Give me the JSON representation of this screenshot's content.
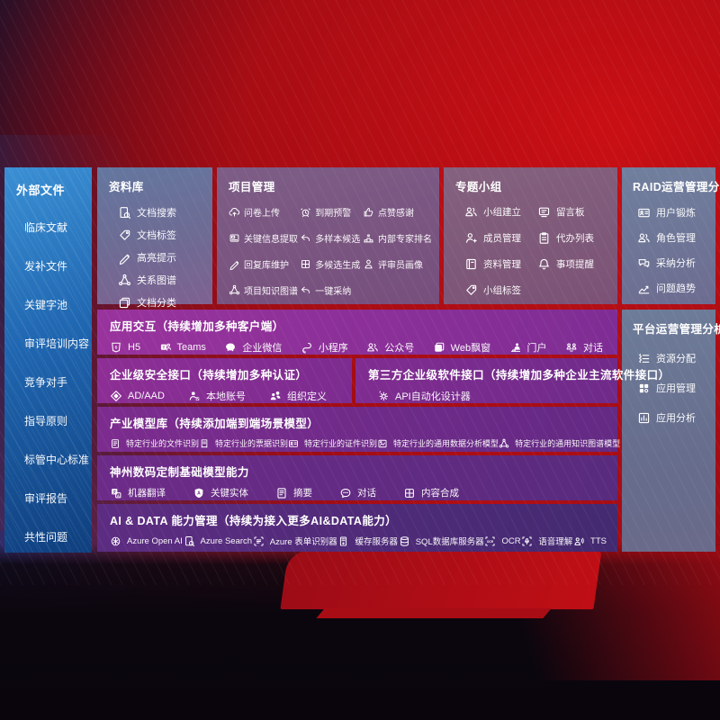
{
  "colors": {
    "background_red": "#bb0e14",
    "background_dark": "#0b060e",
    "sidebar_blue_top": "#3a8fd4",
    "sidebar_blue_bottom": "#0f3f7e",
    "panel_slate_blue": "#64779f",
    "panel_mauve": "#7d5d86",
    "row_purple_bright": "#99339d",
    "row_purple_deep": "#432a70",
    "text": "#ffffff"
  },
  "sidebar": {
    "title": "外部文件",
    "items": [
      {
        "label": "临床文献"
      },
      {
        "label": "发补文件"
      },
      {
        "label": "关键字池"
      },
      {
        "label": "审评培训内容"
      },
      {
        "label": "竞争对手"
      },
      {
        "label": "指导原则"
      },
      {
        "label": "标管中心标准"
      },
      {
        "label": "审评报告"
      },
      {
        "label": "共性问题"
      }
    ]
  },
  "panels": {
    "library": {
      "title": "资料库",
      "items": [
        {
          "icon": "doc-search-icon",
          "label": "文档搜索"
        },
        {
          "icon": "doc-tag-icon",
          "label": "文档标签"
        },
        {
          "icon": "highlight-pen-icon",
          "label": "高亮提示"
        },
        {
          "icon": "relation-graph-icon",
          "label": "关系图谱"
        },
        {
          "icon": "doc-classify-icon",
          "label": "文档分类"
        }
      ]
    },
    "project": {
      "title": "项目管理",
      "items": [
        {
          "icon": "cloud-upload-icon",
          "label": "问卷上传"
        },
        {
          "icon": "alarm-icon",
          "label": "到期预警"
        },
        {
          "icon": "thumbs-up-icon",
          "label": "点赞感谢"
        },
        {
          "icon": "key-info-icon",
          "label": "关键信息提取"
        },
        {
          "icon": "multi-sample-icon",
          "label": "多样本候选"
        },
        {
          "icon": "expert-rank-icon",
          "label": "内部专家排名"
        },
        {
          "icon": "reply-maintain-icon",
          "label": "回复库维护"
        },
        {
          "icon": "multi-candidate-icon",
          "label": "多候选生成"
        },
        {
          "icon": "reviewer-portrait-icon",
          "label": "评审员画像"
        },
        {
          "icon": "project-kg-icon",
          "label": "项目知识图谱"
        },
        {
          "icon": "one-click-adopt-icon",
          "label": "一键采纳"
        }
      ]
    },
    "groups": {
      "title": "专题小组",
      "items": [
        {
          "icon": "group-create-icon",
          "label": "小组建立"
        },
        {
          "icon": "message-board-icon",
          "label": "留言板"
        },
        {
          "icon": "member-manage-icon",
          "label": "成员管理"
        },
        {
          "icon": "todo-list-icon",
          "label": "代办列表"
        },
        {
          "icon": "material-manage-icon",
          "label": "资料管理"
        },
        {
          "icon": "matter-remind-icon",
          "label": "事项提醒"
        },
        {
          "icon": "group-tag-icon",
          "label": "小组标签"
        }
      ]
    },
    "raid": {
      "title": "RAID运营管理分析",
      "items": [
        {
          "icon": "user-card-icon",
          "label": "用户锻炼"
        },
        {
          "icon": "role-manage-icon",
          "label": "角色管理"
        },
        {
          "icon": "adoption-analysis-icon",
          "label": "采纳分析"
        },
        {
          "icon": "issue-trend-icon",
          "label": "问题趋势"
        }
      ]
    },
    "platform": {
      "title": "平台运营管理分析",
      "items": [
        {
          "icon": "resource-alloc-icon",
          "label": "资源分配"
        },
        {
          "icon": "app-manage-icon",
          "label": "应用管理"
        },
        {
          "icon": "app-analysis-icon",
          "label": "应用分析"
        }
      ]
    }
  },
  "rows": {
    "interaction": {
      "title": "应用交互（持续增加多种客户端）",
      "items": [
        {
          "icon": "h5-icon",
          "label": "H5"
        },
        {
          "icon": "teams-icon",
          "label": "Teams"
        },
        {
          "icon": "wechat-work-icon",
          "label": "企业微信"
        },
        {
          "icon": "miniprogram-icon",
          "label": "小程序"
        },
        {
          "icon": "official-account-icon",
          "label": "公众号"
        },
        {
          "icon": "web-window-icon",
          "label": "Web飘窗"
        },
        {
          "icon": "portal-icon",
          "label": "门户"
        },
        {
          "icon": "dialog-icon",
          "label": "对话"
        }
      ]
    },
    "security": {
      "title": "企业级安全接口（持续增加多种认证）",
      "items": [
        {
          "icon": "ad-aad-icon",
          "label": "AD/AAD"
        },
        {
          "icon": "local-account-icon",
          "label": "本地账号"
        },
        {
          "icon": "org-define-icon",
          "label": "组织定义"
        }
      ]
    },
    "thirdparty": {
      "title": "第三方企业级软件接口（持续增加多种企业主流软件接口）",
      "items": [
        {
          "icon": "api-designer-icon",
          "label": "API自动化设计器"
        }
      ]
    },
    "industry": {
      "title": "产业模型库（持续添加端到端场景模型）",
      "items": [
        {
          "icon": "file-recog-icon",
          "label": "特定行业的文件识别"
        },
        {
          "icon": "receipt-recog-icon",
          "label": "特定行业的票据识别"
        },
        {
          "icon": "cert-recog-icon",
          "label": "特定行业的证件识别"
        },
        {
          "icon": "data-model-icon",
          "label": "特定行业的通用数据分析模型"
        },
        {
          "icon": "kg-model-icon",
          "label": "特定行业的通用知识图谱模型"
        }
      ]
    },
    "base_models": {
      "title": "神州数码定制基础模型能力",
      "items": [
        {
          "icon": "translate-icon",
          "label": "机器翻译"
        },
        {
          "icon": "entity-icon",
          "label": "关键实体"
        },
        {
          "icon": "summary-icon",
          "label": "摘要"
        },
        {
          "icon": "chat-icon",
          "label": "对话"
        },
        {
          "icon": "compose-icon",
          "label": "内容合成"
        }
      ]
    },
    "aidata": {
      "title": "AI & DATA 能力管理（持续为接入更多AI&DATA能力）",
      "items": [
        {
          "icon": "openai-icon",
          "label": "Azure Open AI"
        },
        {
          "icon": "azure-search-icon",
          "label": "Azure Search"
        },
        {
          "icon": "form-recognizer-icon",
          "label": "Azure 表单识别器"
        },
        {
          "icon": "cache-server-icon",
          "label": "缓存服务器"
        },
        {
          "icon": "sql-db-icon",
          "label": "SQL数据库服务器"
        },
        {
          "icon": "ocr-icon",
          "label": "OCR"
        },
        {
          "icon": "speech-icon",
          "label": "语音理解"
        },
        {
          "icon": "tts-icon",
          "label": "TTS"
        }
      ]
    }
  }
}
